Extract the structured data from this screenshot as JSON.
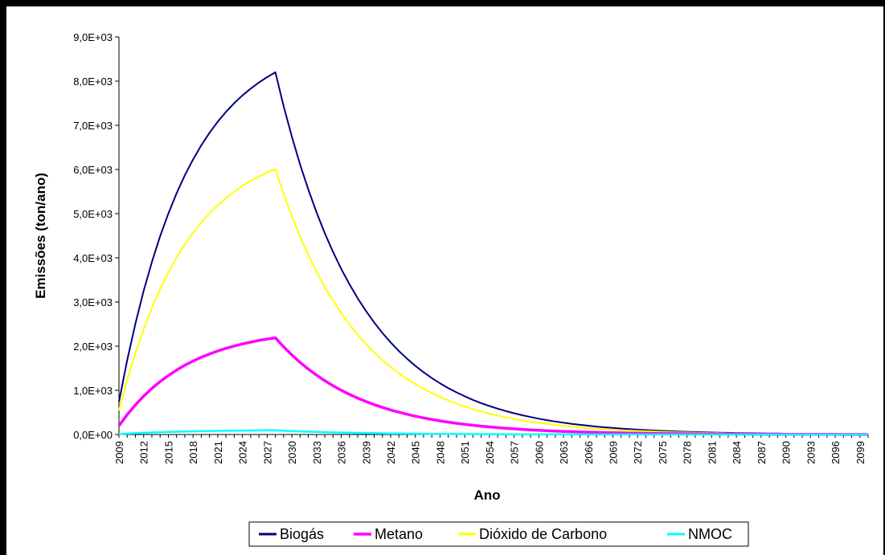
{
  "chart_data": {
    "type": "line",
    "title": "",
    "xlabel": "Ano",
    "ylabel": "Emissões (ton/ano)",
    "x_tick_labels": [
      "2009",
      "2012",
      "2015",
      "2018",
      "2021",
      "2024",
      "2027",
      "2030",
      "2033",
      "2036",
      "2039",
      "2042",
      "2045",
      "2048",
      "2051",
      "2054",
      "2057",
      "2060",
      "2063",
      "2066",
      "2069",
      "2072",
      "2075",
      "2078",
      "2081",
      "2084",
      "2087",
      "2090",
      "2093",
      "2096",
      "2099"
    ],
    "x_range": [
      2009,
      2100
    ],
    "y_tick_labels": [
      "0,0E+00",
      "1,0E+03",
      "2,0E+03",
      "3,0E+03",
      "4,0E+03",
      "5,0E+03",
      "6,0E+03",
      "7,0E+03",
      "8,0E+03",
      "9,0E+03"
    ],
    "ylim": [
      0,
      9000
    ],
    "grid": false,
    "legend_position": "bottom",
    "peak_year": 2028,
    "series": [
      {
        "name": "Biogás",
        "color": "#000080",
        "width": 2,
        "start": 740,
        "peak": 8200,
        "decay": 0.0978
      },
      {
        "name": "Metano",
        "color": "#ff00ff",
        "width": 3.5,
        "start": 198,
        "peak": 2190,
        "decay": 0.0978
      },
      {
        "name": "Dióxido de Carbono",
        "color": "#ffff00",
        "width": 2,
        "start": 545,
        "peak": 6010,
        "decay": 0.0978
      },
      {
        "name": "NMOC",
        "color": "#00ffff",
        "width": 2.5,
        "start": 9,
        "peak": 95,
        "decay": 0.0978
      }
    ]
  }
}
